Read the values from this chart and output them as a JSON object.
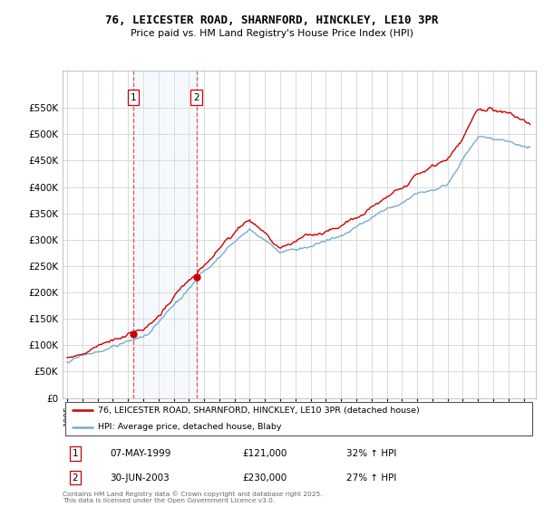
{
  "title": "76, LEICESTER ROAD, SHARNFORD, HINCKLEY, LE10 3PR",
  "subtitle": "Price paid vs. HM Land Registry's House Price Index (HPI)",
  "legend_line1": "76, LEICESTER ROAD, SHARNFORD, HINCKLEY, LE10 3PR (detached house)",
  "legend_line2": "HPI: Average price, detached house, Blaby",
  "annotation1_label": "1",
  "annotation1_date": "07-MAY-1999",
  "annotation1_price": "£121,000",
  "annotation1_hpi": "32% ↑ HPI",
  "annotation2_label": "2",
  "annotation2_date": "30-JUN-2003",
  "annotation2_price": "£230,000",
  "annotation2_hpi": "27% ↑ HPI",
  "footer": "Contains HM Land Registry data © Crown copyright and database right 2025.\nThis data is licensed under the Open Government Licence v3.0.",
  "sale1_year": 1999.35,
  "sale1_price": 121000,
  "sale2_year": 2003.5,
  "sale2_price": 230000,
  "red_color": "#cc0000",
  "blue_color": "#7aabcf",
  "shade_color": "#dde8f5",
  "grid_color": "#cccccc",
  "background_color": "#ffffff",
  "ylim_min": 0,
  "ylim_max": 620000,
  "yticks": [
    0,
    50000,
    100000,
    150000,
    200000,
    250000,
    300000,
    350000,
    400000,
    450000,
    500000,
    550000
  ],
  "xstart": 1995,
  "xend": 2025
}
